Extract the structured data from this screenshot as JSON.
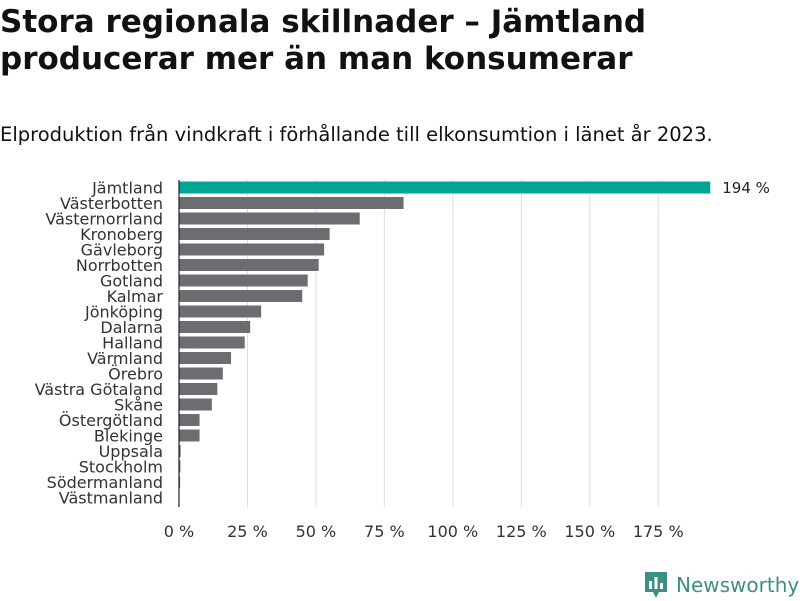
{
  "header": {
    "title": "Stora regionala skillnader – Jämtland producerar mer än man konsumerar",
    "subtitle": "Elproduktion från vindkraft i förhållande till elkonsumtion i länet år 2023."
  },
  "brand": {
    "name": "Newsworthy",
    "logo_icon": "bar-chart-bubble-icon"
  },
  "colors": {
    "highlight": "#00a596",
    "default": "#6d6c70",
    "grid": "#dddddd",
    "brand": "#3d8f86"
  },
  "chart_data": {
    "type": "bar",
    "orientation": "horizontal",
    "categories": [
      "Jämtland",
      "Västerbotten",
      "Västernorrland",
      "Kronoberg",
      "Gävleborg",
      "Norrbotten",
      "Gotland",
      "Kalmar",
      "Jönköping",
      "Dalarna",
      "Halland",
      "Värmland",
      "Örebro",
      "Västra Götaland",
      "Skåne",
      "Östergötland",
      "Blekinge",
      "Uppsala",
      "Stockholm",
      "Södermanland",
      "Västmanland"
    ],
    "values": [
      194,
      82,
      66,
      55,
      53,
      51,
      47,
      45,
      30,
      26,
      24,
      19,
      16,
      14,
      12,
      7.5,
      7.5,
      0.6,
      0.5,
      0.4,
      0
    ],
    "highlight": [
      "Jämtland"
    ],
    "data_labels": {
      "Jämtland": "194 %"
    },
    "xlim": [
      0,
      195
    ],
    "xticks": [
      0,
      25,
      50,
      75,
      100,
      125,
      150,
      175
    ],
    "xtick_labels": [
      "0 %",
      "25 %",
      "50 %",
      "75 %",
      "100 %",
      "125 %",
      "150 %",
      "175 %"
    ],
    "grid": true,
    "title": "Stora regionala skillnader – Jämtland producerar mer än man konsumerar",
    "subtitle": "Elproduktion från vindkraft i förhållande till elkonsumtion i länet år 2023."
  }
}
